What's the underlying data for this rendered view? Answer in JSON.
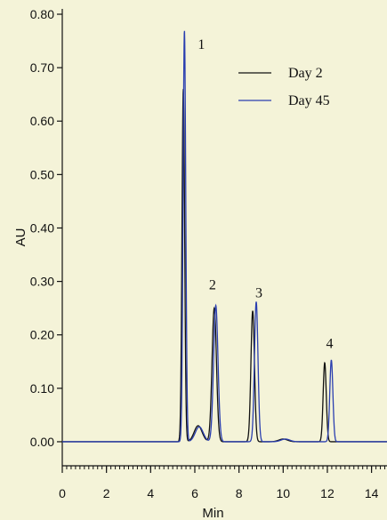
{
  "chart_data": {
    "type": "line",
    "xlabel": "Min",
    "ylabel": "AU",
    "xlim": [
      0,
      14.7
    ],
    "ylim": [
      -0.045,
      0.81
    ],
    "x_ticks": [
      "0",
      "2",
      "4",
      "6",
      "8",
      "10",
      "12",
      "14"
    ],
    "x_tick_values": [
      0,
      2,
      4,
      6,
      8,
      10,
      12,
      14
    ],
    "y_ticks": [
      "0.00",
      "0.10",
      "0.20",
      "0.30",
      "0.40",
      "0.50",
      "0.60",
      "0.70",
      "0.80"
    ],
    "y_tick_values": [
      0,
      0.1,
      0.2,
      0.3,
      0.4,
      0.5,
      0.6,
      0.7,
      0.8
    ],
    "minor_x_step": 0.2,
    "grid": false,
    "legend_position": "top-right",
    "series": [
      {
        "name": "Day 2",
        "color": "#111111",
        "peaks": [
          {
            "x": 5.48,
            "height": 0.66,
            "width": 0.06
          },
          {
            "x": 6.15,
            "height": 0.03,
            "width": 0.18
          },
          {
            "x": 6.88,
            "height": 0.25,
            "width": 0.1
          },
          {
            "x": 8.62,
            "height": 0.245,
            "width": 0.08
          },
          {
            "x": 10.0,
            "height": 0.005,
            "width": 0.2
          },
          {
            "x": 11.88,
            "height": 0.148,
            "width": 0.07
          }
        ]
      },
      {
        "name": "Day 45",
        "color": "#2b3fb0",
        "peaks": [
          {
            "x": 5.53,
            "height": 0.77,
            "width": 0.06
          },
          {
            "x": 6.2,
            "height": 0.028,
            "width": 0.18
          },
          {
            "x": 6.95,
            "height": 0.255,
            "width": 0.1
          },
          {
            "x": 8.78,
            "height": 0.262,
            "width": 0.08
          },
          {
            "x": 10.1,
            "height": 0.005,
            "width": 0.2
          },
          {
            "x": 12.18,
            "height": 0.153,
            "width": 0.07
          }
        ]
      }
    ],
    "peak_labels": [
      {
        "text": "1",
        "x": 6.3,
        "y": 0.735
      },
      {
        "text": "2",
        "x": 6.8,
        "y": 0.285
      },
      {
        "text": "3",
        "x": 8.9,
        "y": 0.27
      },
      {
        "text": "4",
        "x": 12.1,
        "y": 0.175
      }
    ]
  }
}
